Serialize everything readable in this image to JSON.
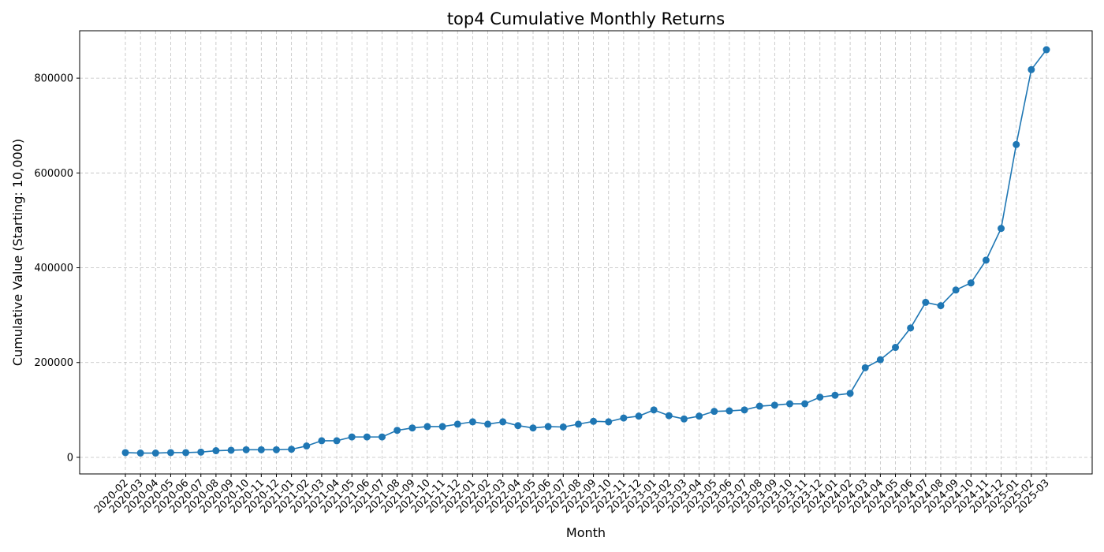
{
  "chart_data": {
    "type": "line",
    "title": "top4 Cumulative Monthly Returns",
    "xlabel": "Month",
    "ylabel": "Cumulative Value (Starting: 10,000)",
    "ylim": [
      -35000,
      900000
    ],
    "yticks": [
      0,
      200000,
      400000,
      600000,
      800000
    ],
    "grid": true,
    "color": "#1f77b4",
    "categories": [
      "2020-02",
      "2020-03",
      "2020-04",
      "2020-05",
      "2020-06",
      "2020-07",
      "2020-08",
      "2020-09",
      "2020-10",
      "2020-11",
      "2020-12",
      "2021-01",
      "2021-02",
      "2021-03",
      "2021-04",
      "2021-05",
      "2021-06",
      "2021-07",
      "2021-08",
      "2021-09",
      "2021-10",
      "2021-11",
      "2021-12",
      "2022-01",
      "2022-02",
      "2022-03",
      "2022-04",
      "2022-05",
      "2022-06",
      "2022-07",
      "2022-08",
      "2022-09",
      "2022-10",
      "2022-11",
      "2022-12",
      "2023-01",
      "2023-02",
      "2023-03",
      "2023-04",
      "2023-05",
      "2023-06",
      "2023-07",
      "2023-08",
      "2023-09",
      "2023-10",
      "2023-11",
      "2023-12",
      "2024-01",
      "2024-02",
      "2024-03",
      "2024-04",
      "2024-05",
      "2024-06",
      "2024-07",
      "2024-08",
      "2024-09",
      "2024-10",
      "2024-11",
      "2024-12",
      "2025-01",
      "2025-02",
      "2025-03"
    ],
    "values": [
      10000,
      9000,
      9000,
      10000,
      10000,
      11000,
      14000,
      15000,
      16000,
      16000,
      16000,
      17000,
      24000,
      35000,
      35000,
      43000,
      43000,
      43000,
      57000,
      62000,
      65000,
      65000,
      70000,
      75000,
      70000,
      75000,
      67000,
      62000,
      65000,
      64000,
      70000,
      76000,
      75000,
      83000,
      87000,
      100000,
      88000,
      81000,
      87000,
      97000,
      98000,
      100000,
      108000,
      110000,
      113000,
      113000,
      127000,
      131000,
      135000,
      189000,
      206000,
      232000,
      273000,
      327000,
      320000,
      353000,
      368000,
      416000,
      483000,
      660000,
      818000,
      860000
    ]
  }
}
